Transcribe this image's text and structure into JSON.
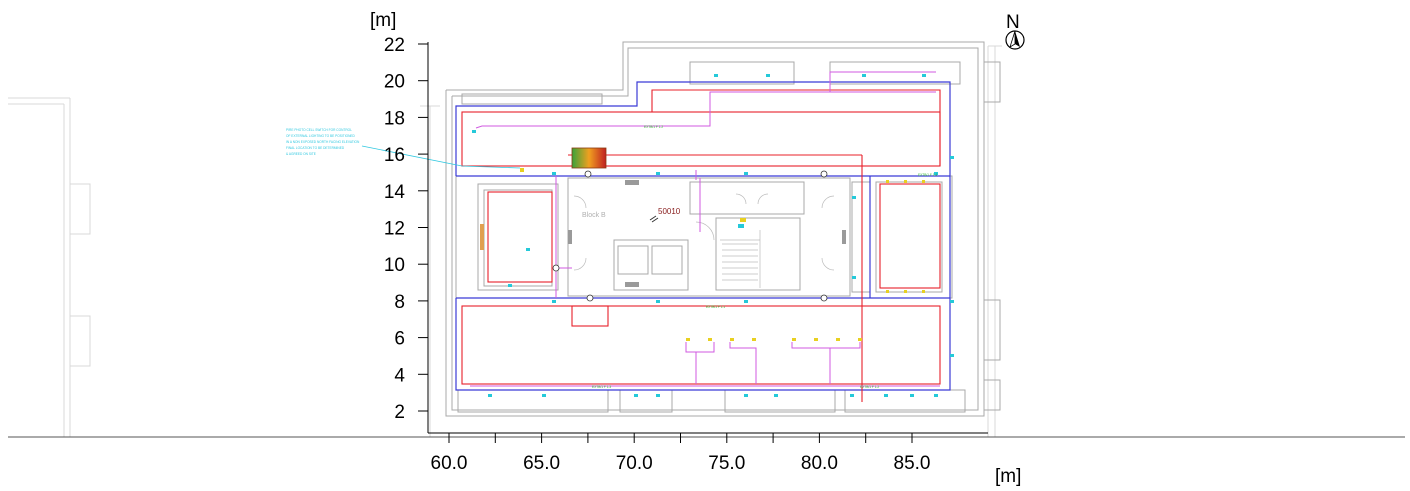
{
  "axes": {
    "y_unit": "[m]",
    "x_unit": "[m]",
    "y_ticks": [
      "2",
      "4",
      "6",
      "8",
      "10",
      "12",
      "14",
      "16",
      "18",
      "20",
      "22"
    ],
    "x_ticks": [
      "60.0",
      "65.0",
      "70.0",
      "75.0",
      "80.0",
      "85.0"
    ]
  },
  "compass": {
    "label": "N"
  },
  "plan": {
    "room_label": "Block B",
    "room_number": "50010",
    "note_lines": [
      "PIRE PHOTO CELL SWITCH FOR CONTROL",
      "OF EXTERNAL LIGHTING TO BE POSITIONED",
      "IN A NON EXPOSED NORTH FACING ELEVATION",
      "FINAL LOCATION TO BE DETERMINED",
      "& AGREED ON SITE"
    ],
    "circuit_labels": [
      "EXTB/1 F 1.2",
      "EXTB/1 F 1.1",
      "EXTB/1 F 1.3",
      "EXTB/1 F 1.2",
      "EXTB/1 F 1.4"
    ]
  },
  "colors": {
    "wall": "#b0b0b0",
    "red_zone": "#e8202a",
    "blue_circuit": "#3b3bd6",
    "magenta_circuit": "#d05ae0",
    "fixture_cyan": "#25c9d9",
    "fixture_yellow": "#e8d020",
    "label_green": "#2db52d",
    "note_cyan": "#2fc8e0"
  }
}
